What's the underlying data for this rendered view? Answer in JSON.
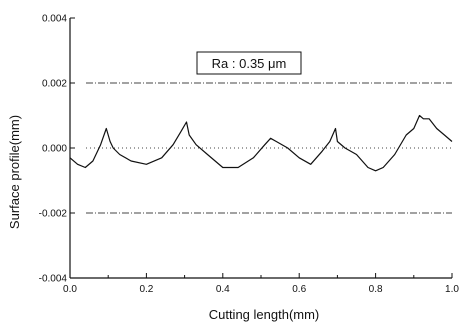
{
  "chart_data": {
    "type": "line",
    "xlabel": "Cutting length(mm)",
    "ylabel": "Surface profile(mm)",
    "xlim": [
      0.0,
      1.0
    ],
    "ylim": [
      -0.004,
      0.004
    ],
    "x_ticks": [
      "0.0",
      "0.2",
      "0.4",
      "0.6",
      "0.8",
      "1.0"
    ],
    "y_ticks": [
      "0.004",
      "0.002",
      "0.000",
      "-0.002",
      "-0.004"
    ],
    "annotation": "Ra : 0.35 μm",
    "reference_lines": [
      0.002,
      0.0,
      -0.002
    ],
    "series": [
      {
        "x": [
          0.0,
          0.02,
          0.04,
          0.06,
          0.08,
          0.095,
          0.105,
          0.113,
          0.13,
          0.16,
          0.2,
          0.24,
          0.27,
          0.29,
          0.305,
          0.312,
          0.33,
          0.36,
          0.4,
          0.44,
          0.48,
          0.51,
          0.525,
          0.54,
          0.57,
          0.6,
          0.63,
          0.66,
          0.68,
          0.695,
          0.7,
          0.72,
          0.75,
          0.78,
          0.8,
          0.82,
          0.85,
          0.88,
          0.9,
          0.915,
          0.925,
          0.94,
          0.96,
          0.98,
          1.0
        ],
        "y": [
          -0.0003,
          -0.0005,
          -0.0006,
          -0.0004,
          0.0001,
          0.0006,
          0.0002,
          0.0,
          -0.0002,
          -0.0004,
          -0.0005,
          -0.0003,
          0.0001,
          0.0005,
          0.0008,
          0.0004,
          0.0001,
          -0.0002,
          -0.0006,
          -0.0006,
          -0.0003,
          0.0001,
          0.0003,
          0.0002,
          0.0,
          -0.0003,
          -0.0005,
          -0.0001,
          0.0002,
          0.0006,
          0.0002,
          0.0,
          -0.0002,
          -0.0006,
          -0.0007,
          -0.0006,
          -0.0002,
          0.0004,
          0.0006,
          0.001,
          0.0009,
          0.0009,
          0.0006,
          0.0004,
          0.0002
        ]
      }
    ]
  }
}
